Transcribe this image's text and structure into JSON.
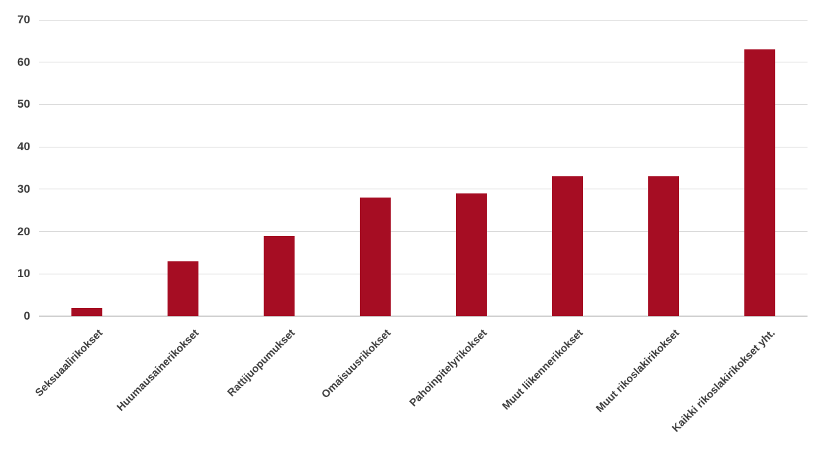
{
  "chart_data": {
    "type": "bar",
    "title": "",
    "xlabel": "",
    "ylabel": "",
    "categories": [
      "Seksuaalirikokset",
      "Huumausainerikokset",
      "Rattijuopumukset",
      "Omaisuusrikokset",
      "Pahoinpitelyrikokset",
      "Muut liikennerikokset",
      "Muut rikoslakirikokset",
      "Kaikki rikoslakirikokset yht."
    ],
    "values": [
      2,
      13,
      19,
      28,
      29,
      33,
      33,
      63
    ],
    "ylim": [
      0,
      70
    ],
    "yticks": [
      0,
      10,
      20,
      30,
      40,
      50,
      60,
      70
    ],
    "grid": true,
    "legend_position": "none",
    "x_label_rotation_deg": -45,
    "colors": {
      "bar": "#a60d23",
      "gridline": "#d9d9d9",
      "axis_baseline": "#d0d0d0",
      "tick_label_text": "#3f3f3f",
      "background": "#ffffff"
    }
  }
}
